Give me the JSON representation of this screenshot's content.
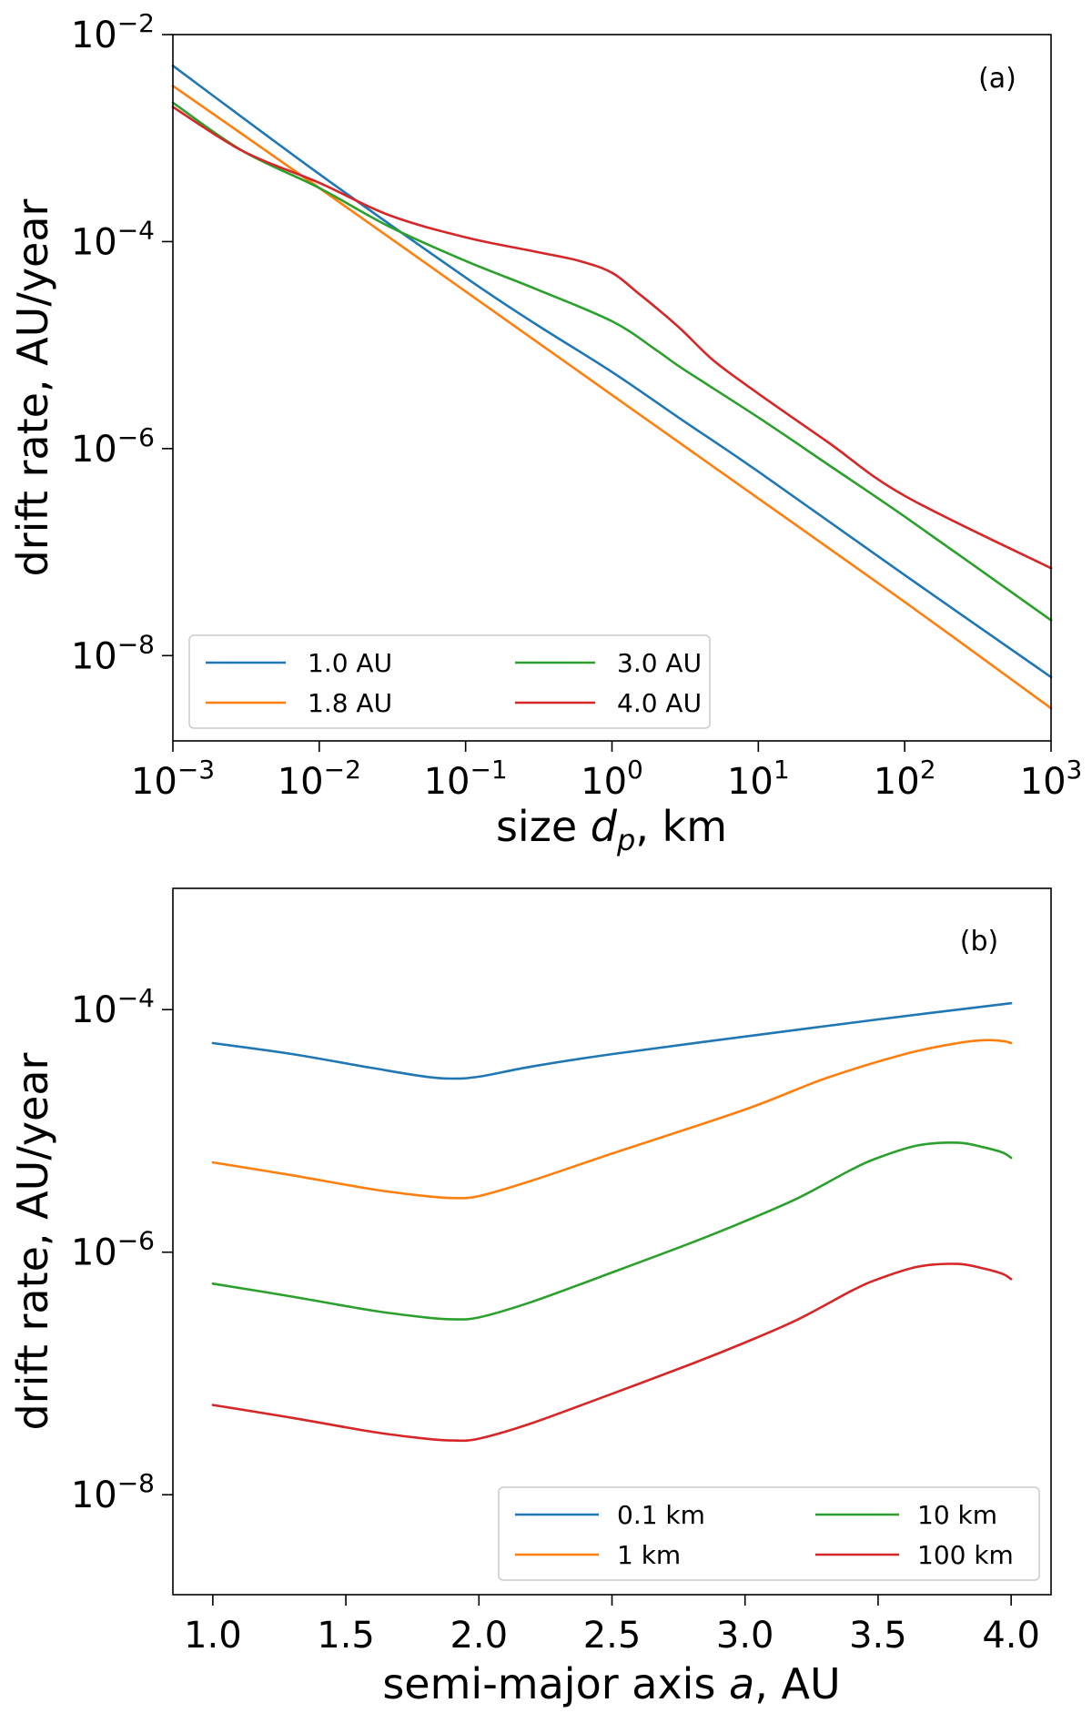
{
  "chart_data": [
    {
      "type": "line",
      "panel_label": "(a)",
      "xscale": "log",
      "yscale": "log",
      "xlabel": "size d_p, km",
      "xlabel_prefix": "size ",
      "xlabel_var": "d",
      "xlabel_sub": "p",
      "xlabel_suffix": ", km",
      "ylabel": "drift rate, AU/year",
      "xlim": [
        0.001,
        1000
      ],
      "ylim": [
        1.5e-09,
        0.01
      ],
      "x_ticks": [
        {
          "value": 0.001,
          "base": "10",
          "exp": "−3"
        },
        {
          "value": 0.01,
          "base": "10",
          "exp": "−2"
        },
        {
          "value": 0.1,
          "base": "10",
          "exp": "−1"
        },
        {
          "value": 1,
          "base": "10",
          "exp": "0"
        },
        {
          "value": 10,
          "base": "10",
          "exp": "1"
        },
        {
          "value": 100,
          "base": "10",
          "exp": "2"
        },
        {
          "value": 1000,
          "base": "10",
          "exp": "3"
        }
      ],
      "y_ticks": [
        {
          "value": 1e-08,
          "base": "10",
          "exp": "−8"
        },
        {
          "value": 1e-06,
          "base": "10",
          "exp": "−6"
        },
        {
          "value": 0.0001,
          "base": "10",
          "exp": "−4"
        },
        {
          "value": 0.01,
          "base": "10",
          "exp": "−2"
        }
      ],
      "legend_position": "lower-left",
      "series": [
        {
          "name": "1.0 AU",
          "color": "#1f77b4",
          "x": [
            0.001,
            0.01,
            0.1,
            0.3,
            1,
            3,
            10,
            100,
            1000
          ],
          "y": [
            0.005,
            0.00045,
            4.5e-05,
            1.6e-05,
            5.5e-06,
            1.9e-06,
            6e-07,
            6e-08,
            6.2e-09
          ]
        },
        {
          "name": "1.8 AU",
          "color": "#ff7f0e",
          "x": [
            0.001,
            0.01,
            0.1,
            1,
            10,
            100,
            1000
          ],
          "y": [
            0.0032,
            0.00033,
            3.3e-05,
            3.3e-06,
            3.3e-07,
            3.3e-08,
            3.1e-09
          ]
        },
        {
          "name": "3.0 AU",
          "color": "#2ca02c",
          "x": [
            0.001,
            0.003,
            0.01,
            0.03,
            0.1,
            0.3,
            1,
            2,
            3,
            10,
            30,
            100,
            1000
          ],
          "y": [
            0.0022,
            0.00075,
            0.00033,
            0.00014,
            6.5e-05,
            3.5e-05,
            1.7e-05,
            9e-06,
            6e-06,
            2e-06,
            7e-07,
            2.2e-07,
            2.2e-08
          ]
        },
        {
          "name": "4.0 AU",
          "color": "#d62728",
          "x": [
            0.001,
            0.003,
            0.01,
            0.03,
            0.1,
            0.3,
            0.6,
            1,
            1.5,
            2,
            3,
            5,
            10,
            30,
            100,
            1000
          ],
          "y": [
            0.002,
            0.00075,
            0.00037,
            0.00018,
            0.00011,
            8e-05,
            6.5e-05,
            5e-05,
            3.2e-05,
            2.3e-05,
            1.4e-05,
            7e-06,
            3.4e-06,
            1.15e-06,
            3.5e-07,
            7e-08
          ]
        }
      ]
    },
    {
      "type": "line",
      "panel_label": "(b)",
      "xscale": "linear",
      "yscale": "log",
      "xlabel": "semi-major axis a, AU",
      "xlabel_prefix": "semi-major axis ",
      "xlabel_var": "a",
      "xlabel_sub": "",
      "xlabel_suffix": ", AU",
      "ylabel": "drift rate, AU/year",
      "xlim": [
        0.85,
        4.15
      ],
      "ylim": [
        1.5e-09,
        0.001
      ],
      "x_ticks": [
        {
          "value": 1.0,
          "label": "1.0"
        },
        {
          "value": 1.5,
          "label": "1.5"
        },
        {
          "value": 2.0,
          "label": "2.0"
        },
        {
          "value": 2.5,
          "label": "2.5"
        },
        {
          "value": 3.0,
          "label": "3.0"
        },
        {
          "value": 3.5,
          "label": "3.5"
        },
        {
          "value": 4.0,
          "label": "4.0"
        }
      ],
      "y_ticks": [
        {
          "value": 1e-08,
          "base": "10",
          "exp": "−8"
        },
        {
          "value": 1e-06,
          "base": "10",
          "exp": "−6"
        },
        {
          "value": 0.0001,
          "base": "10",
          "exp": "−4"
        }
      ],
      "legend_position": "lower-right",
      "series": [
        {
          "name": "0.1 km",
          "color": "#1f77b4",
          "x": [
            1.0,
            1.3,
            1.6,
            1.8,
            1.9,
            2.0,
            2.2,
            2.5,
            3.0,
            3.5,
            4.0
          ],
          "y": [
            5.3e-05,
            4.3e-05,
            3.3e-05,
            2.8e-05,
            2.7e-05,
            2.8e-05,
            3.4e-05,
            4.3e-05,
            6e-05,
            8.3e-05,
            0.000113
          ]
        },
        {
          "name": "1 km",
          "color": "#ff7f0e",
          "x": [
            1.0,
            1.3,
            1.6,
            1.8,
            1.9,
            2.0,
            2.2,
            2.5,
            3.0,
            3.3,
            3.6,
            3.8,
            3.9,
            3.97,
            4.0
          ],
          "y": [
            5.5e-06,
            4.3e-06,
            3.3e-06,
            2.9e-06,
            2.8e-06,
            2.9e-06,
            3.9e-06,
            6.5e-06,
            1.5e-05,
            2.7e-05,
            4.3e-05,
            5.3e-05,
            5.6e-05,
            5.5e-05,
            5.3e-05
          ]
        },
        {
          "name": "10 km",
          "color": "#2ca02c",
          "x": [
            1.0,
            1.3,
            1.6,
            1.8,
            1.9,
            2.0,
            2.2,
            2.5,
            2.8,
            3.0,
            3.2,
            3.4,
            3.5,
            3.65,
            3.8,
            3.9,
            3.97,
            4.0
          ],
          "y": [
            5.5e-07,
            4.3e-07,
            3.3e-07,
            2.9e-07,
            2.8e-07,
            2.9e-07,
            3.9e-07,
            6.8e-07,
            1.2e-06,
            1.8e-06,
            2.8e-06,
            4.8e-06,
            6e-06,
            7.6e-06,
            8e-06,
            7.3e-06,
            6.6e-06,
            6e-06
          ]
        },
        {
          "name": "100 km",
          "color": "#d62728",
          "x": [
            1.0,
            1.3,
            1.6,
            1.8,
            1.9,
            2.0,
            2.2,
            2.5,
            2.8,
            3.0,
            3.2,
            3.4,
            3.5,
            3.65,
            3.8,
            3.9,
            3.97,
            4.0
          ],
          "y": [
            5.5e-08,
            4.3e-08,
            3.3e-08,
            2.9e-08,
            2.8e-08,
            2.9e-08,
            3.9e-08,
            6.8e-08,
            1.2e-07,
            1.8e-07,
            2.8e-07,
            4.8e-07,
            6e-07,
            7.6e-07,
            8e-07,
            7.3e-07,
            6.6e-07,
            6e-07
          ]
        }
      ]
    }
  ]
}
